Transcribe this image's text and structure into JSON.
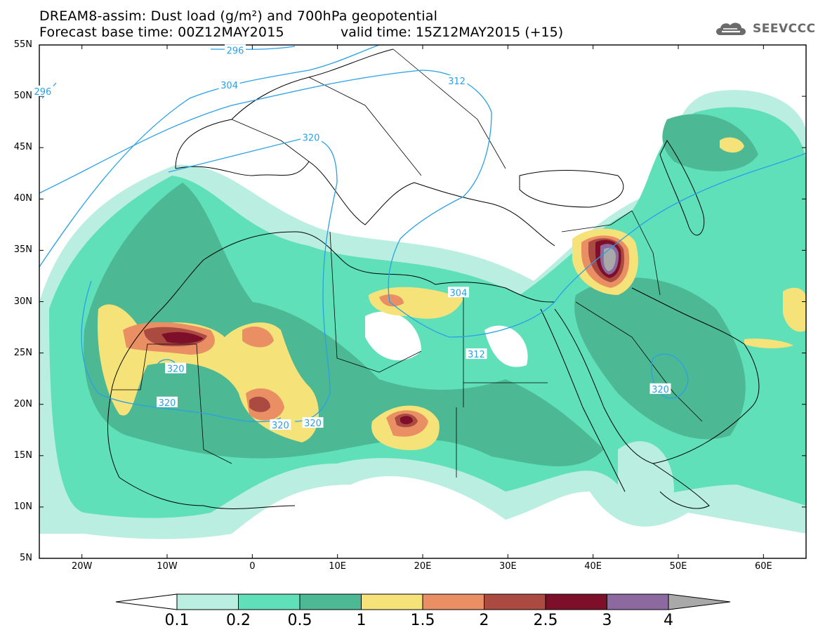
{
  "title": {
    "line1": "DREAM8-assim: Dust load (g/m²) and 700hPa geopotential",
    "line2": "Forecast base time: 00Z12MAY2015",
    "valid": "valid time: 15Z12MAY2015 (+15)"
  },
  "logo": {
    "icon": "cloud-logo-icon",
    "text": "SEEVCCC"
  },
  "map": {
    "lat_labels": [
      "55N",
      "50N",
      "45N",
      "40N",
      "35N",
      "30N",
      "25N",
      "20N",
      "15N",
      "10N",
      "5N"
    ],
    "lon_labels": [
      "20W",
      "10W",
      "0",
      "10E",
      "20E",
      "30E",
      "40E",
      "50E",
      "60E"
    ],
    "lat_values": [
      55,
      50,
      45,
      40,
      35,
      30,
      25,
      20,
      15,
      10,
      5
    ],
    "lon_values": [
      -20,
      -10,
      0,
      10,
      20,
      30,
      40,
      50,
      60
    ],
    "extent": {
      "lon_min": -25,
      "lon_max": 65,
      "lat_min": 5,
      "lat_max": 55
    },
    "contour_labels": [
      {
        "text": "296",
        "lon": -2,
        "lat": 54.5
      },
      {
        "text": "296",
        "lon": -24.6,
        "lat": 50.5
      },
      {
        "text": "304",
        "lon": -2.7,
        "lat": 51.1
      },
      {
        "text": "312",
        "lon": 24,
        "lat": 51.5
      },
      {
        "text": "320",
        "lon": 6.9,
        "lat": 46.0
      },
      {
        "text": "304",
        "lon": 24.2,
        "lat": 30.9
      },
      {
        "text": "312",
        "lon": 26.3,
        "lat": 24.9
      },
      {
        "text": "320",
        "lon": -9.0,
        "lat": 23.5
      },
      {
        "text": "320",
        "lon": -10.0,
        "lat": 20.2
      },
      {
        "text": "320",
        "lon": 3.3,
        "lat": 18.0
      },
      {
        "text": "320",
        "lon": 7.1,
        "lat": 18.2
      },
      {
        "text": "320",
        "lon": 47.9,
        "lat": 21.5
      }
    ]
  },
  "colorbar": {
    "labels": [
      "0.1",
      "0.2",
      "0.5",
      "1",
      "1.5",
      "2",
      "2.5",
      "3",
      "4"
    ],
    "colors": {
      "lt0.1": "#ffffff",
      "0.1-0.2": "#b9eee0",
      "0.2-0.5": "#5fe0b8",
      "0.5-1": "#4db894",
      "1-1.5": "#f5e278",
      "1.5-2": "#ea8f64",
      "2-2.5": "#ab4a40",
      "2.5-3": "#7e0f2a",
      "3-4": "#8c6aa0",
      "gt4": "#a9a9a9"
    }
  }
}
